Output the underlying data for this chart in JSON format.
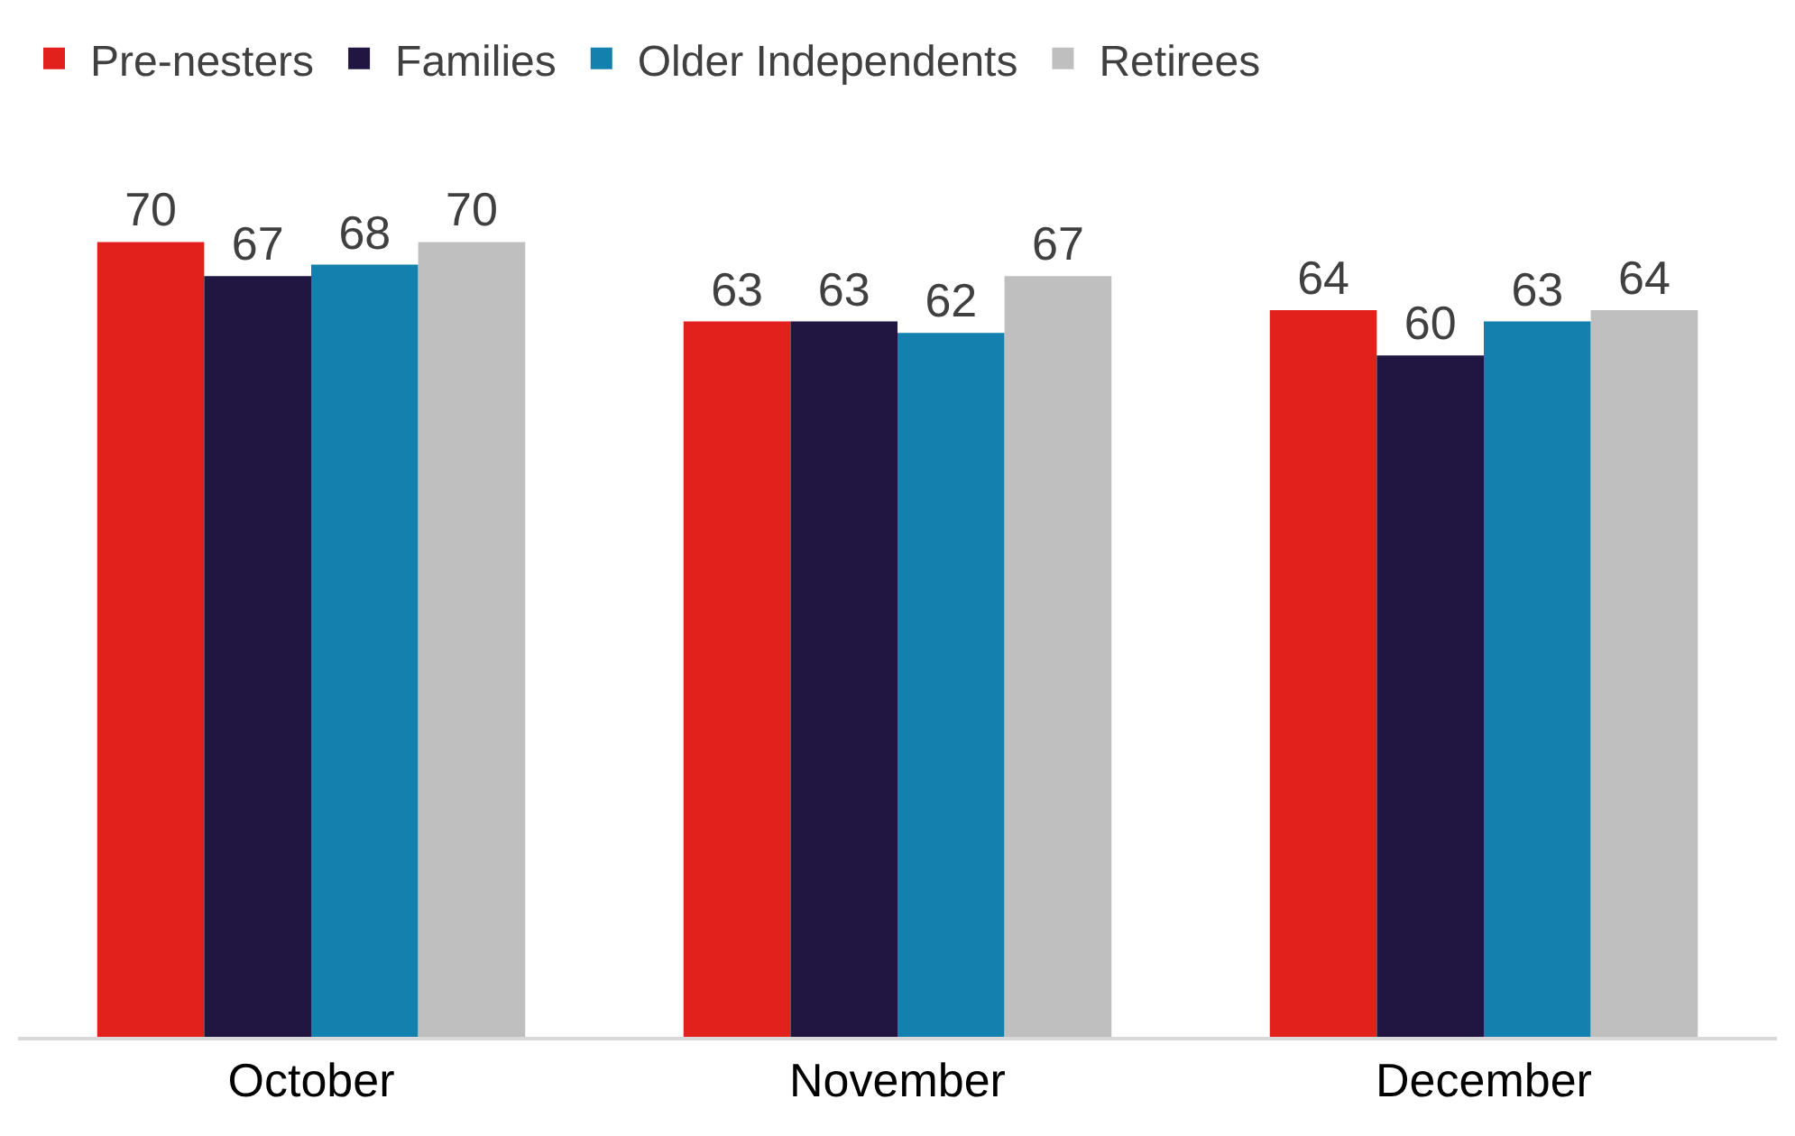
{
  "chart_data": {
    "type": "bar",
    "categories": [
      "October",
      "November",
      "December"
    ],
    "series": [
      {
        "name": "Pre-nesters",
        "color": "#e2211c",
        "values": [
          70,
          63,
          64
        ]
      },
      {
        "name": "Families",
        "color": "#201641",
        "values": [
          67,
          63,
          60
        ]
      },
      {
        "name": "Older Independents",
        "color": "#1380ad",
        "values": [
          68,
          62,
          63
        ]
      },
      {
        "name": "Retirees",
        "color": "#bfbfbf",
        "values": [
          70,
          67,
          64
        ]
      }
    ],
    "data_labels": true,
    "legend": "top left",
    "tick_labels": "x"
  }
}
